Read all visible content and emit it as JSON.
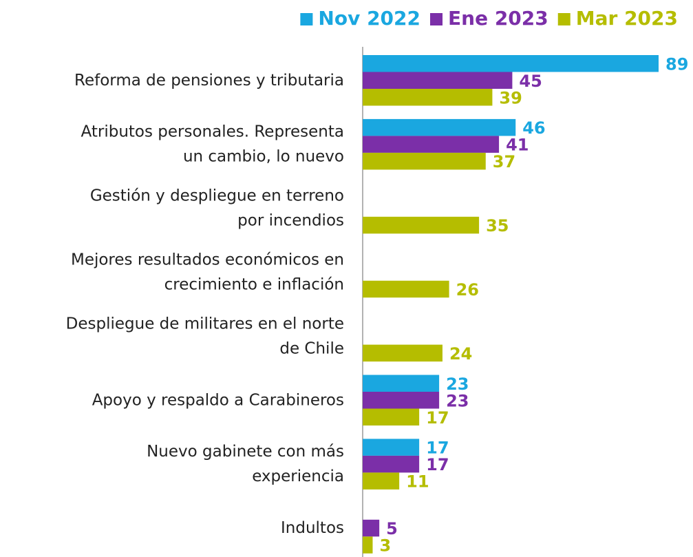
{
  "chart_data": {
    "type": "bar",
    "orientation": "horizontal",
    "categories": [
      "Reforma de pensiones y tributaria",
      "Atributos personales. Representa\nun cambio, lo nuevo",
      "Gestión y despliegue en terreno\npor incendios",
      "Mejores resultados económicos en\ncrecimiento e inflación",
      "Despliegue de militares en el norte\nde Chile",
      "Apoyo y respaldo a Carabineros",
      "Nuevo gabinete con más\nexperiencia",
      "Indultos"
    ],
    "series": [
      {
        "name": "Nov 2022",
        "color": "#1aa7e0",
        "values": [
          89,
          46,
          null,
          null,
          null,
          23,
          17,
          null
        ]
      },
      {
        "name": "Ene 2023",
        "color": "#7b2fa8",
        "values": [
          45,
          41,
          null,
          null,
          null,
          23,
          17,
          5
        ]
      },
      {
        "name": "Mar 2023",
        "color": "#b5bd00",
        "values": [
          39,
          37,
          35,
          26,
          24,
          17,
          11,
          3
        ]
      }
    ],
    "legend": "top-right"
  }
}
